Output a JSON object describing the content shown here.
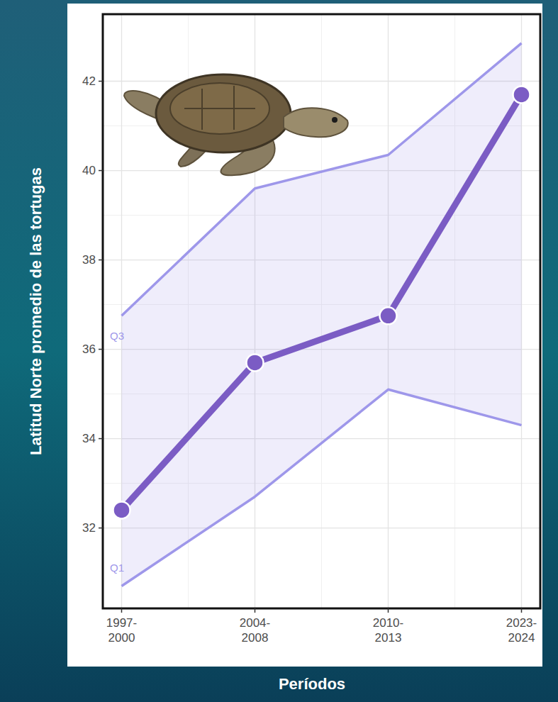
{
  "chart_data": {
    "type": "line",
    "x_label": "Períodos",
    "y_label": "Latitud Norte promedio de las tortugas",
    "categories": [
      "1997-2000",
      "2004-2008",
      "2010-2013",
      "2023-2024"
    ],
    "series": [
      {
        "name": "Q3",
        "color": "#9e97ea",
        "values": [
          36.75,
          39.6,
          40.35,
          42.85
        ]
      },
      {
        "name": "Q1",
        "color": "#9e97ea",
        "values": [
          30.7,
          32.7,
          35.1,
          34.3
        ]
      },
      {
        "color": "#7b5cc4",
        "marker": "circle",
        "values": [
          32.4,
          35.7,
          36.75,
          41.7
        ]
      }
    ],
    "ylim": [
      30.2,
      43.5
    ],
    "yticks": [
      32,
      34,
      36,
      38,
      40,
      42
    ],
    "grid": true
  }
}
